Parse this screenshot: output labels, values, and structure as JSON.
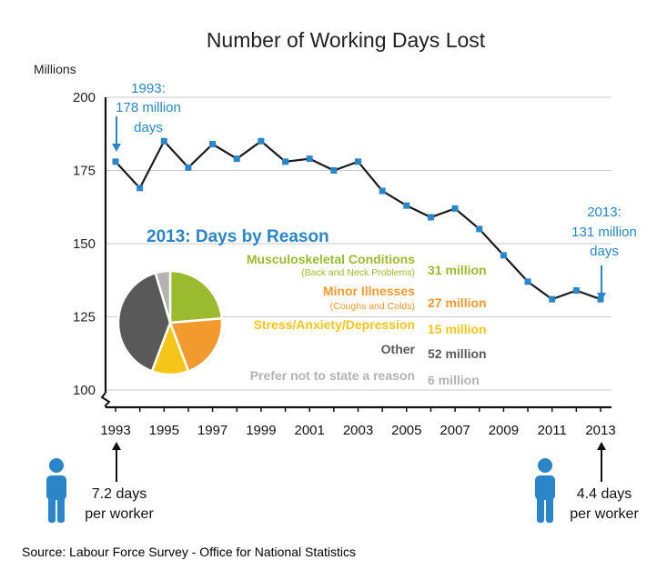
{
  "colors": {
    "line": "#1a1a1a",
    "marker": "#2a86c8",
    "accent_blue": "#2a86c8",
    "grid": "#c8c8c8",
    "musculoskeletal": "#9bbb2e",
    "minor": "#f29a2e",
    "stress": "#f5c518",
    "other": "#595959",
    "prefer_not": "#b3b3b3"
  },
  "chart_data": [
    {
      "type": "line",
      "title": "Number of Working Days Lost",
      "ylabel": "Millions",
      "xlabel": "",
      "ylim": [
        100,
        200
      ],
      "yticks": [
        100,
        125,
        150,
        175,
        200
      ],
      "xticks": [
        "1993",
        "1995",
        "1997",
        "1999",
        "2001",
        "2003",
        "2005",
        "2007",
        "2009",
        "2011",
        "2013"
      ],
      "grid": true,
      "series": [
        {
          "x": [
            1993,
            1994,
            1995,
            1996,
            1997,
            1998,
            1999,
            2000,
            2001,
            2002,
            2003,
            2004,
            2005,
            2006,
            2007,
            2008,
            2009,
            2010,
            2011,
            2012,
            2013
          ],
          "values": [
            178,
            169,
            185,
            176,
            184,
            179,
            185,
            178,
            179,
            175,
            178,
            168,
            163,
            159,
            162,
            155,
            146,
            137,
            131,
            134,
            131
          ]
        }
      ],
      "annotations": [
        {
          "lines": [
            "1993:",
            "178 million",
            "days"
          ],
          "x": 1993,
          "y": 178
        },
        {
          "lines": [
            "2013:",
            "131 million",
            "days"
          ],
          "x": 2013,
          "y": 131
        }
      ]
    },
    {
      "type": "pie",
      "title": "2013: Days by Reason",
      "slices": [
        {
          "label": "Musculoskeletal Conditions",
          "sublabel": "(Back and Neck Problems)",
          "value_label": "31 million",
          "value": 31,
          "color": "#9bbb2e"
        },
        {
          "label": "Minor Illnesses",
          "sublabel": "(Coughs and Colds)",
          "value_label": "27 million",
          "value": 27,
          "color": "#f29a2e"
        },
        {
          "label": "Stress/Anxiety/Depression",
          "sublabel": "",
          "value_label": "15 million",
          "value": 15,
          "color": "#f5c518"
        },
        {
          "label": "Other",
          "sublabel": "",
          "value_label": "52 million",
          "value": 52,
          "color": "#595959"
        },
        {
          "label": "Prefer not to state a reason",
          "sublabel": "",
          "value_label": "6 million",
          "value": 6,
          "color": "#b3b3b3"
        }
      ]
    }
  ],
  "workers": [
    {
      "year": "1993",
      "lines": [
        "7.2 days",
        "per worker"
      ],
      "icon": "person-icon"
    },
    {
      "year": "2013",
      "lines": [
        "4.4 days",
        "per worker"
      ],
      "icon": "person-icon"
    }
  ],
  "source": "Source: Labour Force Survey - Office for National Statistics"
}
